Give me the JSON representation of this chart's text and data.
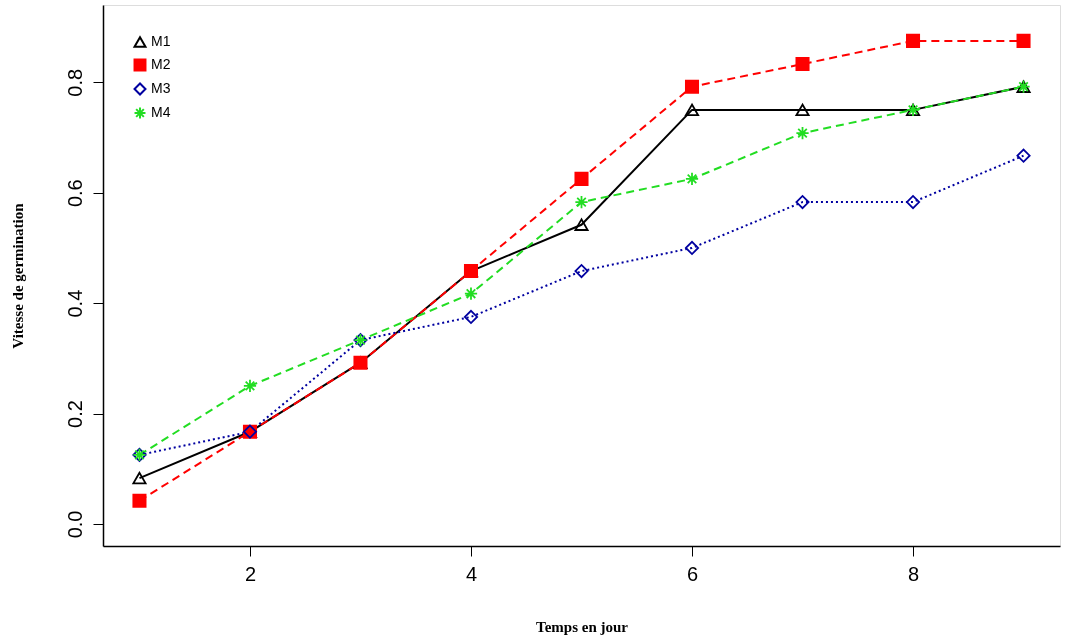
{
  "chart_data": {
    "type": "line",
    "xlabel": "Temps en jour",
    "ylabel": "Vitesse de germination",
    "x": [
      1,
      2,
      3,
      4,
      5,
      6,
      7,
      8,
      9
    ],
    "series": [
      {
        "name": "M1",
        "color": "#000000",
        "marker": "triangle",
        "line_style": "solid",
        "values": [
          0.083,
          0.167,
          0.292,
          0.458,
          0.542,
          0.75,
          0.75,
          0.75,
          0.792
        ]
      },
      {
        "name": "M2",
        "color": "#ff0000",
        "marker": "square",
        "line_style": "dashed",
        "values": [
          0.042,
          0.167,
          0.292,
          0.458,
          0.625,
          0.792,
          0.833,
          0.875,
          0.875
        ]
      },
      {
        "name": "M3",
        "color": "#0000a0",
        "marker": "diamond",
        "line_style": "dotted",
        "values": [
          0.125,
          0.167,
          0.333,
          0.375,
          0.458,
          0.5,
          0.583,
          0.583,
          0.667
        ]
      },
      {
        "name": "M4",
        "color": "#22dd22",
        "marker": "cross",
        "line_style": "dashed",
        "values": [
          0.125,
          0.25,
          0.333,
          0.417,
          0.583,
          0.625,
          0.708,
          0.75,
          0.792
        ]
      }
    ],
    "xlim": [
      0.67,
      9.33
    ],
    "ylim": [
      -0.04,
      0.94
    ],
    "xticks": [
      2,
      4,
      6,
      8
    ],
    "yticks": [
      {
        "value": 0,
        "label": "0.0"
      },
      {
        "value": 0.2,
        "label": "0.2"
      },
      {
        "value": 0.4,
        "label": "0.4"
      },
      {
        "value": 0.6,
        "label": "0.6"
      },
      {
        "value": 0.8,
        "label": "0.8"
      }
    ],
    "grid": false,
    "legend": "top left"
  }
}
